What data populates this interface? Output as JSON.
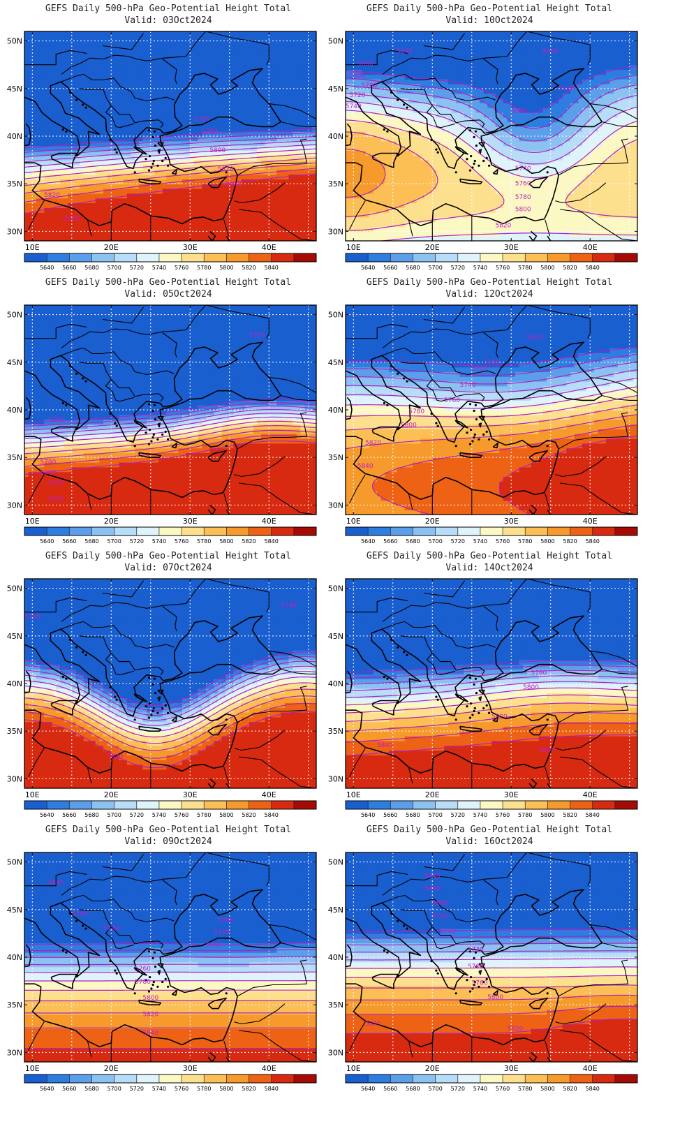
{
  "levels": [
    5640,
    5660,
    5680,
    5700,
    5720,
    5740,
    5760,
    5780,
    5800,
    5820,
    5840
  ],
  "colorbar": {
    "colors": [
      "#1a5fd0",
      "#2e7de0",
      "#5b9fea",
      "#8cc2f2",
      "#b7ddf8",
      "#dff3fb",
      "#fcf8c4",
      "#fde08e",
      "#fbbf55",
      "#f79a2c",
      "#ee6215",
      "#d82a10",
      "#a50a05"
    ],
    "labels": [
      "5640",
      "5660",
      "5680",
      "5700",
      "5720",
      "5740",
      "5760",
      "5780",
      "5800",
      "5820",
      "5840"
    ]
  },
  "axes": {
    "lon_ticks": [
      "10E",
      "20E",
      "30E",
      "40E"
    ],
    "lat_ticks": [
      "50N",
      "45N",
      "40N",
      "35N",
      "30N"
    ],
    "lon_range": [
      9,
      46
    ],
    "lat_range": [
      29,
      51
    ]
  },
  "colors": {
    "contour": "#b020c0",
    "label": "#c020c0",
    "coast": "#000000",
    "grid": "#ffffff"
  },
  "panels": [
    {
      "title": "GEFS Daily 500-hPa Geo-Potential Height Total",
      "valid": "Valid: 03Oct2024",
      "labels": [
        {
          "t": "5760",
          "lon": 31.5,
          "lat": 41.8
        },
        {
          "t": "5780",
          "lon": 32.5,
          "lat": 40.5
        },
        {
          "t": "5800",
          "lon": 33.5,
          "lat": 38.5
        },
        {
          "t": "5820",
          "lon": 34.5,
          "lat": 36.5
        },
        {
          "t": "5840",
          "lon": 35.5,
          "lat": 34.9
        },
        {
          "t": "5820",
          "lon": 12.5,
          "lat": 33.8
        },
        {
          "t": "5840",
          "lon": 15.0,
          "lat": 31.3
        }
      ]
    },
    {
      "title": "GEFS Daily 500-hPa Geo-Potential Height Total",
      "valid": "Valid: 10Oct2024",
      "labels": [
        {
          "t": "5640",
          "lon": 16.5,
          "lat": 48.9
        },
        {
          "t": "5640",
          "lon": 35.0,
          "lat": 48.9
        },
        {
          "t": "5660",
          "lon": 11.5,
          "lat": 47.6
        },
        {
          "t": "5680",
          "lon": 10.5,
          "lat": 46.4
        },
        {
          "t": "5700",
          "lon": 12.0,
          "lat": 45.3
        },
        {
          "t": "5720",
          "lon": 10.5,
          "lat": 44.3
        },
        {
          "t": "5740",
          "lon": 10.0,
          "lat": 43.1
        },
        {
          "t": "5720",
          "lon": 37.0,
          "lat": 45.0
        },
        {
          "t": "5680",
          "lon": 31.0,
          "lat": 42.6
        },
        {
          "t": "5740",
          "lon": 31.5,
          "lat": 36.6
        },
        {
          "t": "5760",
          "lon": 31.5,
          "lat": 35.0
        },
        {
          "t": "5780",
          "lon": 31.5,
          "lat": 33.6
        },
        {
          "t": "5800",
          "lon": 31.5,
          "lat": 32.3
        },
        {
          "t": "5820",
          "lon": 29.0,
          "lat": 30.6
        }
      ]
    },
    {
      "title": "GEFS Daily 500-hPa Geo-Potential Height Total",
      "valid": "Valid: 05Oct2024",
      "labels": [
        {
          "t": "5780",
          "lon": 38.5,
          "lat": 47.8
        },
        {
          "t": "5780",
          "lon": 13.0,
          "lat": 38.9
        },
        {
          "t": "5780",
          "lon": 12.0,
          "lat": 34.5
        },
        {
          "t": "5800",
          "lon": 12.0,
          "lat": 33.4
        },
        {
          "t": "5820",
          "lon": 13.0,
          "lat": 32.3
        },
        {
          "t": "5840",
          "lon": 13.0,
          "lat": 30.6
        }
      ]
    },
    {
      "title": "GEFS Daily 500-hPa Geo-Potential Height Total",
      "valid": "Valid: 12Oct2024",
      "labels": [
        {
          "t": "5680",
          "lon": 33.0,
          "lat": 47.6
        },
        {
          "t": "5700",
          "lon": 27.5,
          "lat": 45.0
        },
        {
          "t": "5720",
          "lon": 26.0,
          "lat": 44.3
        },
        {
          "t": "5740",
          "lon": 24.5,
          "lat": 42.6
        },
        {
          "t": "5760",
          "lon": 22.5,
          "lat": 41.0
        },
        {
          "t": "5780",
          "lon": 18.0,
          "lat": 39.8
        },
        {
          "t": "5800",
          "lon": 17.0,
          "lat": 38.4
        },
        {
          "t": "5820",
          "lon": 12.5,
          "lat": 36.5
        },
        {
          "t": "5840",
          "lon": 11.5,
          "lat": 34.1
        }
      ]
    },
    {
      "title": "GEFS Daily 500-hPa Geo-Potential Height Total",
      "valid": "Valid: 07Oct2024",
      "labels": [
        {
          "t": "5780",
          "lon": 10.0,
          "lat": 47.0
        },
        {
          "t": "5820",
          "lon": 20.5,
          "lat": 32.3
        },
        {
          "t": "5740",
          "lon": 42.5,
          "lat": 48.2
        }
      ]
    },
    {
      "title": "GEFS Daily 500-hPa Geo-Potential Height Total",
      "valid": "Valid: 14Oct2024",
      "labels": [
        {
          "t": "5780",
          "lon": 33.5,
          "lat": 41.1
        },
        {
          "t": "5800",
          "lon": 32.5,
          "lat": 39.6
        },
        {
          "t": "5820",
          "lon": 28.5,
          "lat": 36.5
        },
        {
          "t": "5840",
          "lon": 14.0,
          "lat": 33.5
        },
        {
          "t": "5840",
          "lon": 34.5,
          "lat": 33.0
        }
      ]
    },
    {
      "title": "GEFS Daily 500-hPa Geo-Potential Height Total",
      "valid": "Valid: 09Oct2024",
      "labels": [
        {
          "t": "5660",
          "lon": 13.0,
          "lat": 47.8
        },
        {
          "t": "5700",
          "lon": 16.0,
          "lat": 44.5
        },
        {
          "t": "5720",
          "lon": 20.0,
          "lat": 43.0
        },
        {
          "t": "5700",
          "lon": 34.5,
          "lat": 43.8
        },
        {
          "t": "5720",
          "lon": 34.0,
          "lat": 42.6
        },
        {
          "t": "5740",
          "lon": 33.0,
          "lat": 41.3
        },
        {
          "t": "5760",
          "lon": 24.0,
          "lat": 38.8
        },
        {
          "t": "5780",
          "lon": 24.0,
          "lat": 37.4
        },
        {
          "t": "5800",
          "lon": 25.0,
          "lat": 35.7
        },
        {
          "t": "5820",
          "lon": 25.0,
          "lat": 34.0
        },
        {
          "t": "5840",
          "lon": 25.0,
          "lat": 32.0
        }
      ]
    },
    {
      "title": "GEFS Daily 500-hPa Geo-Potential Height Total",
      "valid": "Valid: 16Oct2024",
      "labels": [
        {
          "t": "5640",
          "lon": 20.0,
          "lat": 48.5
        },
        {
          "t": "5660",
          "lon": 20.0,
          "lat": 47.2
        },
        {
          "t": "5680",
          "lon": 21.0,
          "lat": 45.7
        },
        {
          "t": "5700",
          "lon": 21.0,
          "lat": 44.3
        },
        {
          "t": "5720",
          "lon": 22.0,
          "lat": 42.8
        },
        {
          "t": "5740",
          "lon": 25.5,
          "lat": 40.8
        },
        {
          "t": "5760",
          "lon": 25.5,
          "lat": 39.0
        },
        {
          "t": "5780",
          "lon": 26.0,
          "lat": 37.3
        },
        {
          "t": "5800",
          "lon": 28.0,
          "lat": 35.8
        },
        {
          "t": "5820",
          "lon": 30.5,
          "lat": 32.5
        },
        {
          "t": "5840",
          "lon": 12.5,
          "lat": 33.0
        }
      ]
    }
  ]
}
